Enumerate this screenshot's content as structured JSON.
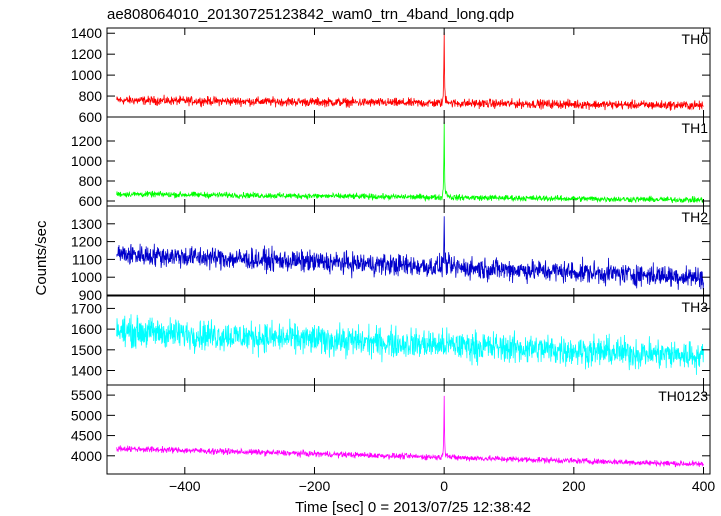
{
  "title": "ae808064010_20130725123842_wam0_trn_4band_long.qdp",
  "xlabel": "Time [sec] 0 = 2013/07/25 12:38:42",
  "ylabel": "Counts/sec",
  "chart_data": {
    "type": "line",
    "title": "ae808064010_20130725123842_wam0_trn_4band_long.qdp",
    "xlabel": "Time [sec] 0 = 2013/07/25 12:38:42",
    "ylabel": "Counts/sec",
    "xlim": [
      -520,
      410
    ],
    "xticks": [
      -400,
      -200,
      0,
      200,
      400
    ],
    "panels": [
      {
        "name": "TH0",
        "color": "#ff0000",
        "ylim": [
          600,
          1450
        ],
        "yticks": [
          600,
          800,
          1000,
          1200,
          1400
        ],
        "baseline_start": 760,
        "baseline_end": 710,
        "noise": 38,
        "peak": 1440,
        "min_time": -505,
        "max_time": 400
      },
      {
        "name": "TH1",
        "color": "#00ff00",
        "ylim": [
          550,
          1440
        ],
        "yticks": [
          600,
          800,
          1000,
          1200
        ],
        "baseline_start": 670,
        "baseline_end": 610,
        "noise": 26,
        "peak": 1430,
        "min_time": -505,
        "max_time": 400
      },
      {
        "name": "TH2",
        "color": "#0000cc",
        "ylim": [
          900,
          1400
        ],
        "yticks": [
          900,
          1000,
          1100,
          1200,
          1300
        ],
        "baseline_start": 1130,
        "baseline_end": 1000,
        "noise": 55,
        "peak": 1400,
        "min_time": -505,
        "max_time": 400
      },
      {
        "name": "TH3",
        "color": "#00ffff",
        "ylim": [
          1330,
          1760
        ],
        "yticks": [
          1400,
          1500,
          1600,
          1700
        ],
        "baseline_start": 1590,
        "baseline_end": 1470,
        "noise": 65,
        "peak": null,
        "min_time": -505,
        "max_time": 400
      },
      {
        "name": "TH0123",
        "color": "#ff00ff",
        "ylim": [
          3550,
          5750
        ],
        "yticks": [
          4000,
          4500,
          5000,
          5500
        ],
        "baseline_start": 4180,
        "baseline_end": 3790,
        "noise": 65,
        "peak": 5720,
        "min_time": -505,
        "max_time": 400
      }
    ]
  }
}
